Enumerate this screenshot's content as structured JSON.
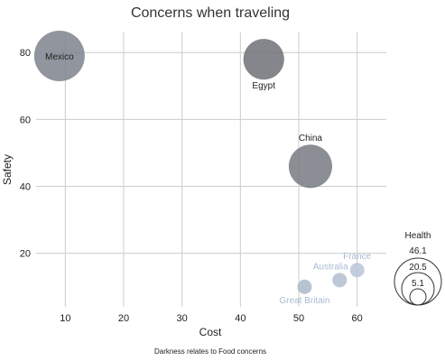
{
  "chart_data": {
    "type": "scatter",
    "title": "Concerns when traveling",
    "xlabel": "Cost",
    "ylabel": "Safety",
    "xlim": [
      5,
      65
    ],
    "ylim": [
      4,
      86
    ],
    "xticks": [
      10,
      20,
      30,
      40,
      50,
      60
    ],
    "yticks": [
      20,
      40,
      60,
      80
    ],
    "grid": true,
    "size_field": "Health",
    "color_field": "Food",
    "points": [
      {
        "label": "Mexico",
        "x": 9,
        "y": 79,
        "size": 46.1,
        "food_level": 0.45
      },
      {
        "label": "Egypt",
        "x": 44,
        "y": 78,
        "size": 30.0,
        "food_level": 0.55
      },
      {
        "label": "China",
        "x": 52,
        "y": 46,
        "size": 34.0,
        "food_level": 0.5
      },
      {
        "label": "France",
        "x": 60,
        "y": 15,
        "size": 3.0,
        "food_level": 0.08
      },
      {
        "label": "Australia",
        "x": 57,
        "y": 12,
        "size": 2.5,
        "food_level": 0.12
      },
      {
        "label": "Great Britain",
        "x": 51,
        "y": 10,
        "size": 3.0,
        "food_level": 0.15
      }
    ],
    "legend": {
      "title": "Health",
      "values": [
        "46.1",
        "20.5",
        "5.1"
      ],
      "placement": "right"
    },
    "footnote": "Darkness relates to Food concerns",
    "colors": {
      "bubble_dark": "#6f7178",
      "bubble_light": "#c3d3e8",
      "grid": "#cccccc"
    }
  }
}
